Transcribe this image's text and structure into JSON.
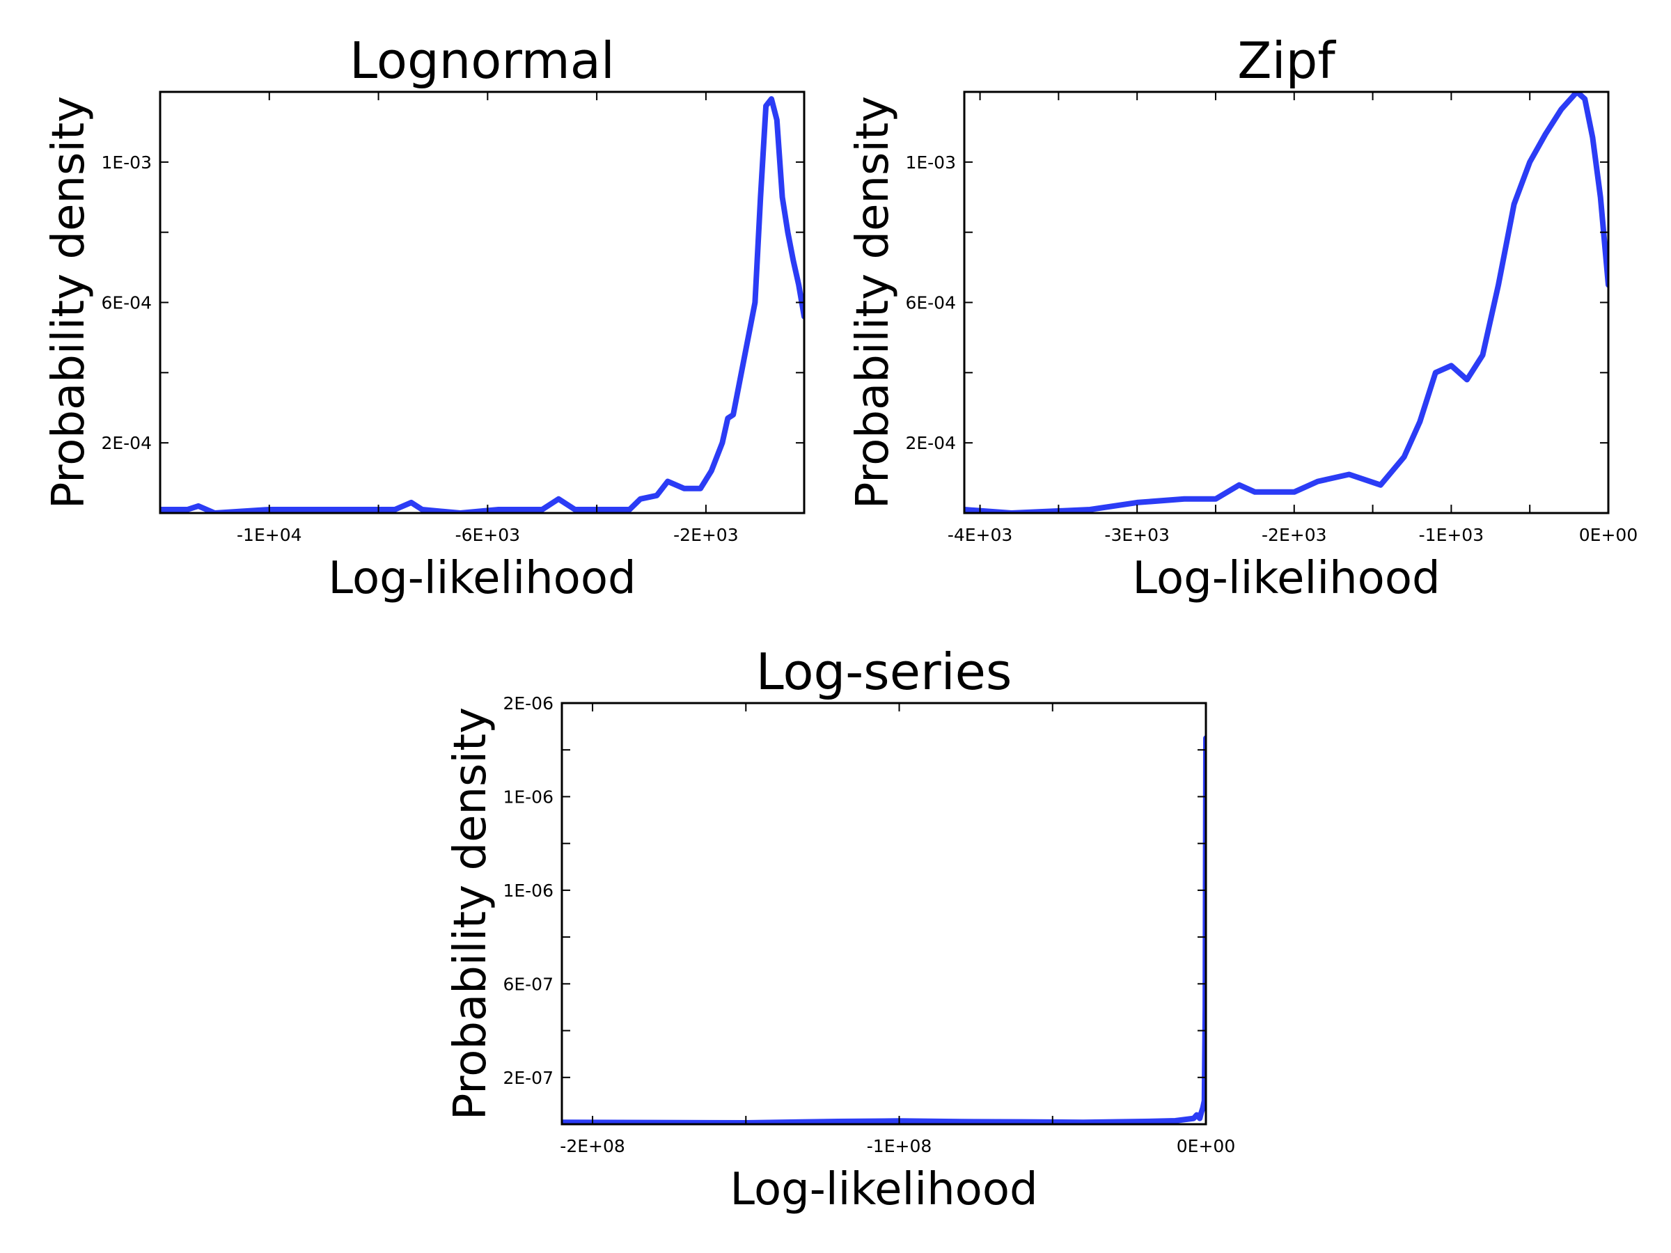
{
  "chart_data": [
    {
      "type": "line",
      "title": "Lognormal",
      "xlabel": "Log-likelihood",
      "ylabel": "Probability density",
      "xlim": [
        -12000,
        -200
      ],
      "ylim": [
        0,
        0.0012
      ],
      "xtick_values": [
        -10000,
        -6000,
        -2000
      ],
      "xtick_labels": [
        "-1E+04",
        "-6E+03",
        "-2E+03"
      ],
      "ytick_values": [
        0.0002,
        0.0006,
        0.001
      ],
      "ytick_labels": [
        "2E-04",
        "6E-04",
        "1E-03"
      ],
      "grid": false,
      "line_color": "#2b3cf5",
      "series": [
        {
          "x": [
            -12000,
            -11500,
            -11300,
            -11000,
            -10000,
            -9000,
            -8000,
            -7700,
            -7400,
            -7200,
            -6500,
            -5800,
            -5000,
            -4700,
            -4400,
            -4000,
            -3400,
            -3200,
            -2900,
            -2700,
            -2400,
            -2300,
            -2100,
            -1900,
            -1700,
            -1600,
            -1500,
            -1100,
            -1000,
            -900,
            -800,
            -700,
            -600,
            -500,
            -400,
            -300,
            -200
          ],
          "y": [
            1e-05,
            1e-05,
            2e-05,
            0.0,
            1e-05,
            1e-05,
            1e-05,
            1e-05,
            3e-05,
            1e-05,
            0.0,
            1e-05,
            1e-05,
            4e-05,
            1e-05,
            1e-05,
            1e-05,
            4e-05,
            5e-05,
            9e-05,
            7e-05,
            7e-05,
            7e-05,
            0.00012,
            0.0002,
            0.00027,
            0.00028,
            0.0006,
            0.0009,
            0.00116,
            0.00118,
            0.00112,
            0.0009,
            0.0008,
            0.00072,
            0.00065,
            0.00056
          ]
        }
      ]
    },
    {
      "type": "line",
      "title": "Zipf",
      "xlabel": "Log-likelihood",
      "ylabel": "Probability density",
      "xlim": [
        -4100,
        0
      ],
      "ylim": [
        0,
        0.0012
      ],
      "xtick_values": [
        -4000,
        -3000,
        -2000,
        -1000,
        0
      ],
      "xtick_labels": [
        "-4E+03",
        "-3E+03",
        "-2E+03",
        "-1E+03",
        "0E+00"
      ],
      "ytick_values": [
        0.0002,
        0.0006,
        0.001
      ],
      "ytick_labels": [
        "2E-04",
        "6E-04",
        "1E-03"
      ],
      "grid": false,
      "line_color": "#2b3cf5",
      "series": [
        {
          "x": [
            -4100,
            -3800,
            -3300,
            -3000,
            -2700,
            -2500,
            -2350,
            -2250,
            -2000,
            -1850,
            -1650,
            -1450,
            -1300,
            -1200,
            -1100,
            -1000,
            -900,
            -800,
            -700,
            -600,
            -500,
            -400,
            -300,
            -200,
            -150,
            -100,
            -50,
            0
          ],
          "y": [
            1e-05,
            0.0,
            1e-05,
            3e-05,
            4e-05,
            4e-05,
            8e-05,
            6e-05,
            6e-05,
            9e-05,
            0.00011,
            8e-05,
            0.00016,
            0.00026,
            0.0004,
            0.00042,
            0.00038,
            0.00045,
            0.00065,
            0.00088,
            0.001,
            0.00108,
            0.00115,
            0.0012,
            0.00118,
            0.00107,
            0.0009,
            0.00065
          ]
        }
      ]
    },
    {
      "type": "line",
      "title": "Log-series",
      "xlabel": "Log-likelihood",
      "ylabel": "Probability density",
      "xlim": [
        -210000000,
        0
      ],
      "ylim": [
        0,
        1.8e-06
      ],
      "xtick_values": [
        -200000000,
        -100000000,
        0
      ],
      "xtick_labels": [
        "-2E+08",
        "-1E+08",
        "0E+00"
      ],
      "ytick_values": [
        2e-07,
        6e-07,
        1e-06,
        1.4e-06,
        1.8e-06
      ],
      "ytick_labels": [
        "2E-07",
        "6E-07",
        "1E-06",
        "1E-06",
        "2E-06"
      ],
      "grid": false,
      "line_color": "#2b3cf5",
      "series": [
        {
          "x": [
            -210000000,
            -180000000,
            -150000000,
            -120000000,
            -100000000,
            -80000000,
            -60000000,
            -40000000,
            -20000000,
            -10000000,
            -4000000,
            -3000000,
            -2000000,
            -1500000,
            -1000000,
            -500000,
            -200000,
            0
          ],
          "y": [
            8e-09,
            7e-09,
            6e-09,
            1.2e-08,
            1.4e-08,
            1.1e-08,
            1e-08,
            8e-09,
            1.2e-08,
            1.5e-08,
            2.5e-08,
            4e-08,
            2.5e-08,
            5e-08,
            7e-08,
            1e-07,
            5e-07,
            1.65e-06
          ]
        }
      ]
    }
  ]
}
